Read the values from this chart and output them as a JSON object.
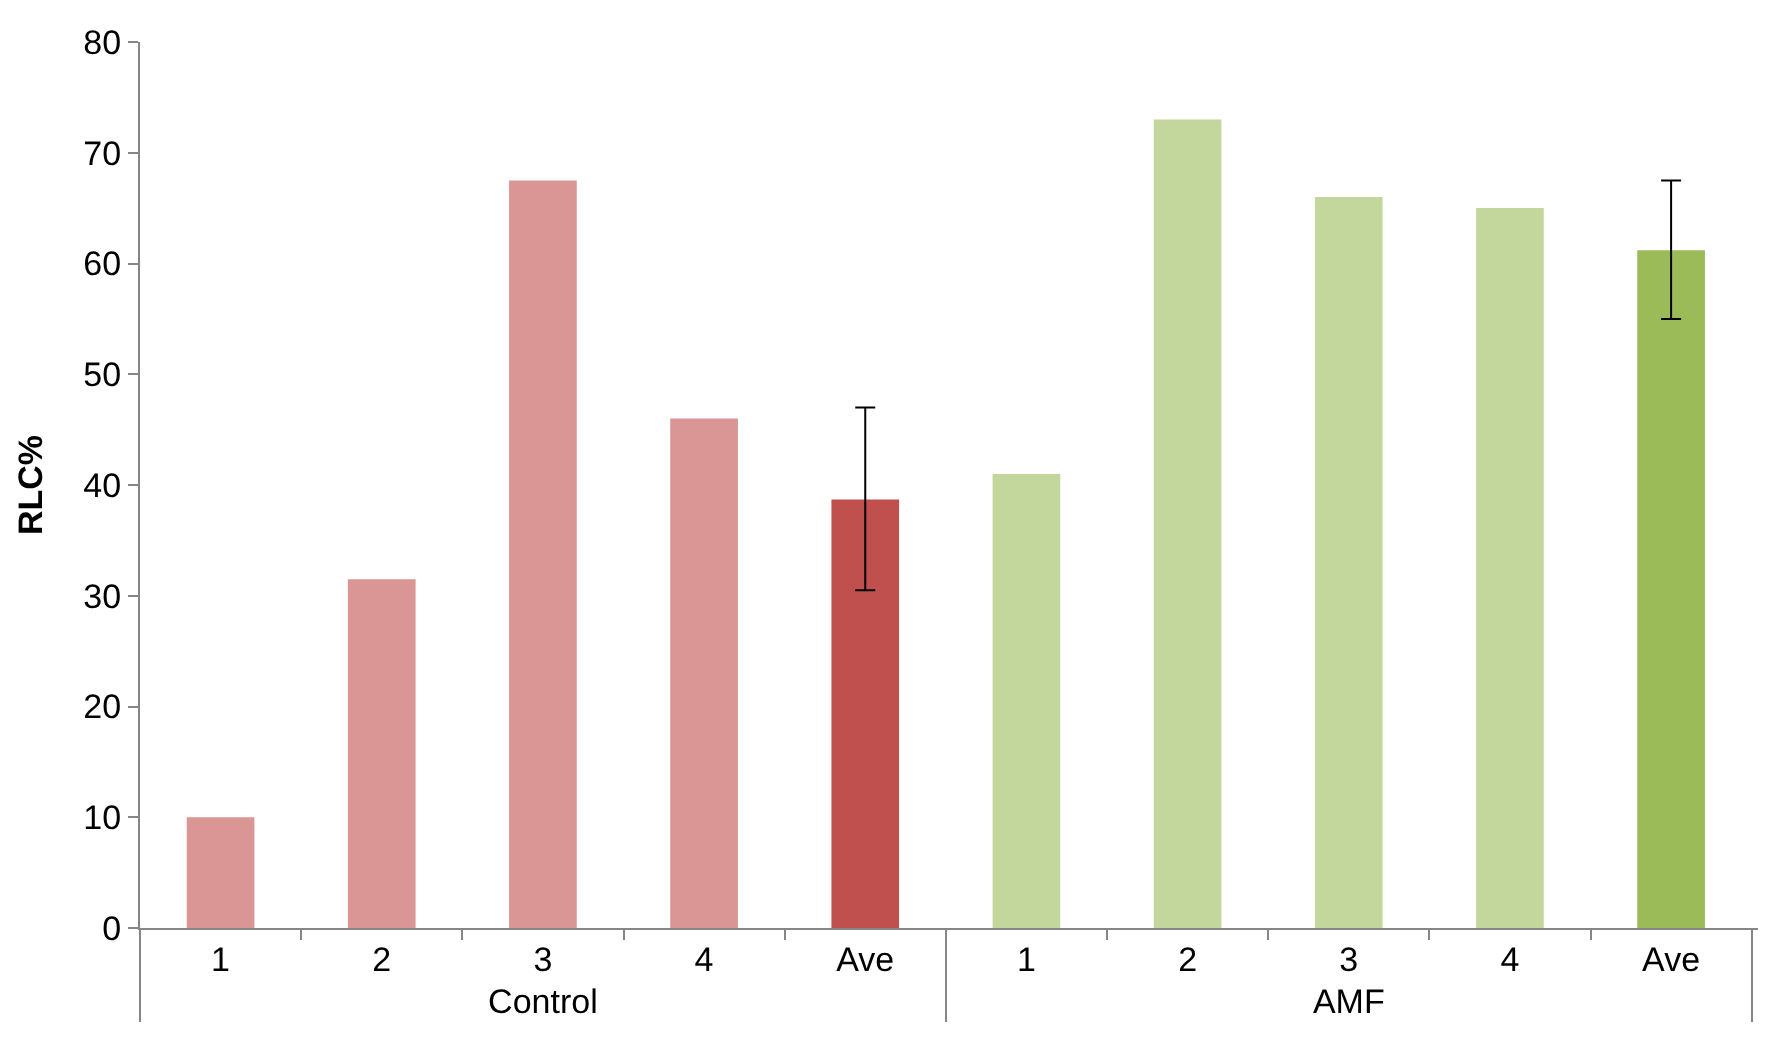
{
  "chart_data": {
    "type": "bar",
    "ylabel": "RLC%",
    "categories": [
      "1",
      "2",
      "3",
      "4",
      "Ave",
      "1",
      "2",
      "3",
      "4",
      "Ave"
    ],
    "annotations": [
      "Control",
      "AMF"
    ],
    "values": [
      10,
      31.5,
      67.5,
      46,
      38.7,
      41,
      73,
      66,
      65,
      61.2
    ],
    "colors": [
      "#d99694",
      "#d99694",
      "#d99694",
      "#d99694",
      "#c0504d",
      "#c3d69b",
      "#c3d69b",
      "#c3d69b",
      "#c3d69b",
      "#9bbb59"
    ],
    "errors": [
      null,
      null,
      null,
      null,
      [
        30.5,
        47
      ],
      null,
      null,
      null,
      null,
      [
        55,
        67.5
      ]
    ],
    "ylim": [
      0,
      80
    ],
    "yticks": [
      0,
      10,
      20,
      30,
      40,
      50,
      60,
      70,
      80
    ],
    "grid": false
  }
}
